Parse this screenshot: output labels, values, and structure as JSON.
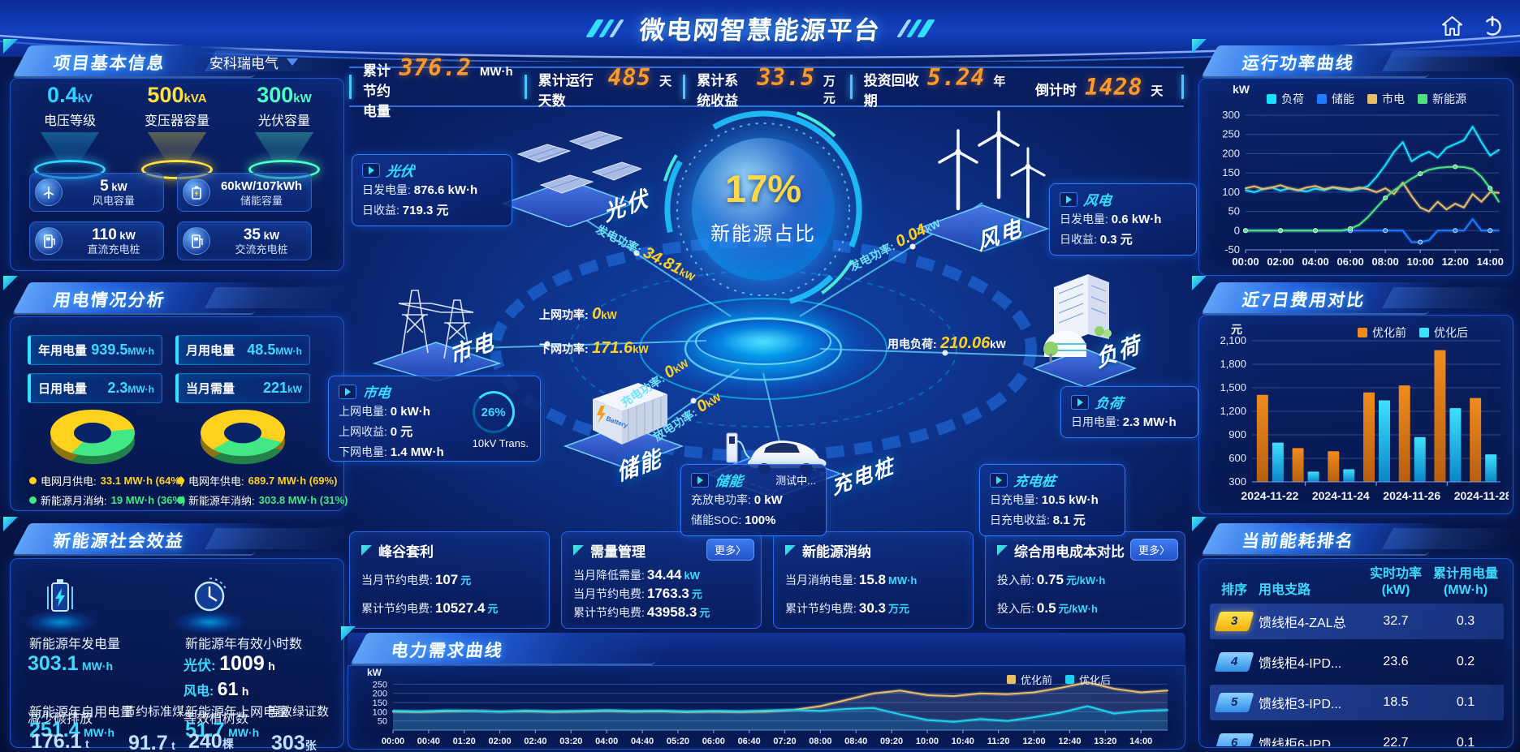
{
  "header": {
    "title": "微电网智慧能源平台"
  },
  "stats_bar": {
    "items": [
      {
        "label": "累计节约电量",
        "value": "376.2",
        "unit": "MW·h"
      },
      {
        "label": "累计运行天数",
        "value": "485",
        "unit": "天"
      },
      {
        "label": "累计系统收益",
        "value": "33.5",
        "unit": "万元"
      },
      {
        "label": "投资回收期",
        "value": "5.24",
        "unit": "年"
      },
      {
        "label": "倒计时",
        "value": "1428",
        "unit": "天"
      }
    ]
  },
  "project": {
    "title": "项目基本信息",
    "dropdown": "安科瑞电气",
    "cones": [
      {
        "value": "0.4",
        "unit": "kV",
        "label": "电压等级",
        "color": "#2fd2ff"
      },
      {
        "value": "500",
        "unit": "kVA",
        "label": "变压器容量",
        "color": "#ffe23f"
      },
      {
        "value": "300",
        "unit": "kW",
        "label": "光伏容量",
        "color": "#4dffc3"
      }
    ],
    "cards": [
      {
        "icon": "wind-turbine-icon",
        "value": "5",
        "unit": "kW",
        "label": "风电容量"
      },
      {
        "icon": "battery-icon",
        "value": "60kW/107kWh",
        "unit": "",
        "label": "储能容量"
      },
      {
        "icon": "dc-charger-icon",
        "value": "110",
        "unit": "kW",
        "label": "直流充电桩"
      },
      {
        "icon": "ac-charger-icon",
        "value": "35",
        "unit": "kW",
        "label": "交流充电桩"
      }
    ]
  },
  "usage": {
    "title": "用电情况分析",
    "stats": [
      {
        "label": "年用电量",
        "value": "939.5",
        "unit": "MW·h"
      },
      {
        "label": "月用电量",
        "value": "48.5",
        "unit": "MW·h"
      },
      {
        "label": "日用电量",
        "value": "2.3",
        "unit": "MW·h"
      },
      {
        "label": "当月需量",
        "value": "221",
        "unit": "kW"
      }
    ],
    "donuts": [
      {
        "from": 210,
        "slices": [
          {
            "label": "电网月供电:",
            "value": "33.1 MW·h",
            "pct": 64,
            "color": "#ffd21f"
          },
          {
            "label": "新能源月消纳:",
            "value": "19 MW·h",
            "pct": 36,
            "color": "#42e884"
          }
        ]
      },
      {
        "from": 225,
        "slices": [
          {
            "label": "电网年供电:",
            "value": "689.7 MW·h",
            "pct": 69,
            "color": "#ffd21f"
          },
          {
            "label": "新能源年消纳:",
            "value": "303.8 MW·h",
            "pct": 31,
            "color": "#42e884"
          }
        ]
      }
    ]
  },
  "benefits": {
    "title": "新能源社会效益",
    "gen": {
      "label": "新能源年发电量",
      "value": "303.1",
      "unit": "MW·h"
    },
    "hours": {
      "label": "新能源年有效小时数",
      "pv_label": "光伏:",
      "pv_value": "1009",
      "pv_unit": "h",
      "wind_label": "风电:",
      "wind_value": "61",
      "wind_unit": "h"
    },
    "self_use": {
      "label": "新能源年自用电量",
      "value": "251.4",
      "unit": "MW·h"
    },
    "co2": {
      "label": "减少碳排放",
      "value": "176.1",
      "unit": "t"
    },
    "coal": {
      "label": "节约标准煤",
      "value": "91.7",
      "unit": "t"
    },
    "to_grid": {
      "label": "新能源年上网电量",
      "value": "51.7",
      "unit": "MW·h"
    },
    "trees": {
      "label": "等效植树数",
      "value": "240",
      "unit": "棵"
    },
    "certs": {
      "label": "等效绿证数",
      "value": "303",
      "unit": "张"
    }
  },
  "diagram": {
    "center_pct": "17%",
    "center_label": "新能源占比",
    "nodes": {
      "pv": "光伏",
      "wind": "风电",
      "grid": "市电",
      "storage": "储能",
      "charger": "充电桩",
      "load": "负荷"
    },
    "callouts": {
      "pv": {
        "title": "光伏",
        "rows": [
          {
            "label": "日发电量:",
            "value": "876.6 kW·h"
          },
          {
            "label": "日收益:",
            "value": "719.3 元"
          }
        ]
      },
      "wind": {
        "title": "风电",
        "rows": [
          {
            "label": "日发电量:",
            "value": "0.6 kW·h"
          },
          {
            "label": "日收益:",
            "value": "0.3 元"
          }
        ]
      },
      "grid": {
        "title": "市电",
        "gauge_pct": "26%",
        "gauge_label": "10kV Trans.",
        "rows": [
          {
            "label": "上网电量:",
            "value": "0 kW·h"
          },
          {
            "label": "上网收益:",
            "value": "0 元"
          },
          {
            "label": "下网电量:",
            "value": "1.4 MW·h"
          }
        ]
      },
      "storage": {
        "title": "储能",
        "note": "测试中...",
        "rows": [
          {
            "label": "充放电功率:",
            "value": "0 kW"
          },
          {
            "label": "储能SOC:",
            "value": "100%"
          }
        ]
      },
      "charger": {
        "title": "充电桩",
        "rows": [
          {
            "label": "日充电量:",
            "value": "10.5 kW·h"
          },
          {
            "label": "日充电收益:",
            "value": "8.1 元"
          }
        ]
      },
      "load": {
        "title": "负荷",
        "rows": [
          {
            "label": "日用电量:",
            "value": "2.3 MW·h"
          }
        ]
      }
    },
    "flows": {
      "pv_gen": {
        "label": "发电功率:",
        "value": "34.81",
        "unit": "kW"
      },
      "wind_gen": {
        "label": "发电功率:",
        "value": "0.04",
        "unit": "kW"
      },
      "feed_in": {
        "label": "上网功率:",
        "value": "0",
        "unit": "kW"
      },
      "draw": {
        "label": "下网功率:",
        "value": "171.6",
        "unit": "kW"
      },
      "load_power": {
        "label": "用电负荷:",
        "value": "210.06",
        "unit": "kW"
      },
      "charge": {
        "label": "充电功率:",
        "value": "0",
        "unit": "kW"
      },
      "discharge": {
        "label": "放电功率:",
        "value": "0",
        "unit": "kW"
      }
    }
  },
  "cards": [
    {
      "title": "峰谷套利",
      "more": null,
      "rows": [
        {
          "label": "当月节约电费:",
          "value": "107",
          "unit": "元"
        },
        {
          "label": "累计节约电费:",
          "value": "10527.4",
          "unit": "元"
        }
      ]
    },
    {
      "title": "需量管理",
      "more": "更多〉",
      "rows": [
        {
          "label": "当月降低需量:",
          "value": "34.44",
          "unit": "kW"
        },
        {
          "label": "当月节约电费:",
          "value": "1763.3",
          "unit": "元"
        },
        {
          "label": "累计节约电费:",
          "value": "43958.3",
          "unit": "元"
        }
      ]
    },
    {
      "title": "新能源消纳",
      "more": null,
      "rows": [
        {
          "label": "当月消纳电量:",
          "value": "15.8",
          "unit": "MW·h"
        },
        {
          "label": "累计节约电费:",
          "value": "30.3",
          "unit": "万元"
        }
      ]
    },
    {
      "title": "综合用电成本对比",
      "more": "更多〉",
      "rows": [
        {
          "label": "投入前:",
          "value": "0.75",
          "unit": "元/kW·h"
        },
        {
          "label": "投入后:",
          "value": "0.5",
          "unit": "元/kW·h"
        }
      ]
    }
  ],
  "ranking": {
    "title": "当前能耗排名",
    "headers": [
      {
        "l1": "排序",
        "l2": ""
      },
      {
        "l1": "用电支路",
        "l2": ""
      },
      {
        "l1": "实时功率",
        "l2": "(kW)"
      },
      {
        "l1": "累计用电量",
        "l2": "(MW·h)"
      }
    ],
    "rows": [
      {
        "rank": "3",
        "badge": "gold",
        "branch": "馈线柜4-ZAL总",
        "power": "32.7",
        "energy": "0.3",
        "hl": true
      },
      {
        "rank": "4",
        "badge": "blue",
        "branch": "馈线柜4-IPD...",
        "power": "23.6",
        "energy": "0.2",
        "hl": false
      },
      {
        "rank": "5",
        "badge": "blue",
        "branch": "馈线柜3-IPD...",
        "power": "18.5",
        "energy": "0.1",
        "hl": true
      },
      {
        "rank": "6",
        "badge": "blue",
        "branch": "馈线柜6-IPD",
        "power": "22.7",
        "energy": "0.1",
        "hl": false
      }
    ]
  },
  "chart_data": [
    {
      "id": "chart-power",
      "type": "line",
      "title": "运行功率曲线",
      "ylabel": "kW",
      "ylim": [
        -50,
        300
      ],
      "yticks": [
        300,
        250,
        200,
        150,
        100,
        50,
        0,
        -50
      ],
      "x_step_hours": 0.5,
      "x_max_hours": 14.5,
      "x_tick_interval_hours": 2,
      "x_ticks": [
        "00:00",
        "02:00",
        "04:00",
        "06:00",
        "08:00",
        "10:00",
        "12:00",
        "14:00"
      ],
      "legend_position": "top",
      "series": [
        {
          "name": "负荷",
          "color": "#17e1ff",
          "values": [
            105,
            100,
            108,
            112,
            104,
            110,
            105,
            102,
            109,
            105,
            112,
            107,
            104,
            108,
            115,
            140,
            170,
            205,
            230,
            180,
            195,
            205,
            190,
            215,
            225,
            235,
            270,
            230,
            195,
            210
          ]
        },
        {
          "name": "储能",
          "color": "#1f7bff",
          "markers": true,
          "values": [
            0,
            0,
            0,
            0,
            0,
            0,
            0,
            0,
            0,
            0,
            0,
            0,
            0,
            0,
            0,
            0,
            0,
            0,
            0,
            -30,
            -30,
            -25,
            0,
            0,
            0,
            0,
            30,
            0,
            0,
            0
          ]
        },
        {
          "name": "市电",
          "color": "#e8c06a",
          "values": [
            110,
            115,
            108,
            112,
            118,
            110,
            105,
            112,
            116,
            108,
            113,
            110,
            107,
            112,
            108,
            100,
            110,
            95,
            125,
            90,
            60,
            50,
            75,
            55,
            70,
            60,
            95,
            75,
            100,
            98
          ]
        },
        {
          "name": "新能源",
          "color": "#52e07c",
          "markers": true,
          "values": [
            0,
            0,
            0,
            0,
            0,
            0,
            0,
            0,
            0,
            0,
            0,
            0,
            5,
            15,
            35,
            60,
            85,
            105,
            120,
            135,
            148,
            158,
            163,
            165,
            166,
            165,
            160,
            140,
            110,
            75
          ]
        }
      ]
    },
    {
      "id": "chart-cost",
      "type": "bar",
      "title": "近7日费用对比",
      "ylabel": "元",
      "ylim": [
        300,
        2100
      ],
      "yticks": [
        2100,
        1800,
        1500,
        1200,
        900,
        600,
        300
      ],
      "categories": [
        "2024-11-22",
        "2024-11-23",
        "2024-11-24",
        "2024-11-25",
        "2024-11-26",
        "2024-11-27",
        "2024-11-28"
      ],
      "labeled_groups": [
        0,
        2,
        4,
        6
      ],
      "legend_position": "top-right",
      "series": [
        {
          "name": "优化前",
          "color": "#f08c1e",
          "color2": "#b85f10",
          "values": [
            1410,
            730,
            690,
            1440,
            1530,
            1980,
            1370
          ]
        },
        {
          "name": "优化后",
          "color": "#3fe0ff",
          "color2": "#0a86c8",
          "values": [
            800,
            430,
            460,
            1340,
            870,
            1240,
            650
          ]
        }
      ]
    },
    {
      "id": "chart-demand",
      "type": "line",
      "title": "电力需求曲线",
      "ylabel": "kW",
      "ylim": [
        0,
        300
      ],
      "yticks": [
        250,
        200,
        150,
        100,
        50
      ],
      "x_step_hours": 0.5,
      "x_max_hours": 14.5,
      "x_tick_interval_hours": 0.6667,
      "x_ticks": [
        "00:00",
        "00:40",
        "01:20",
        "02:00",
        "02:40",
        "03:20",
        "04:00",
        "04:40",
        "05:20",
        "06:00",
        "06:40",
        "07:20",
        "08:00",
        "08:40",
        "09:20",
        "10:00",
        "10:40",
        "11:20",
        "12:00",
        "12:40",
        "13:20",
        "14:00"
      ],
      "legend_position": "top-right",
      "series": [
        {
          "name": "优化前",
          "color": "#e8c06a",
          "fill": "rgba(180,195,225,0.16)",
          "values": [
            100,
            98,
            102,
            105,
            100,
            103,
            99,
            101,
            104,
            100,
            102,
            98,
            100,
            98,
            100,
            110,
            130,
            165,
            200,
            215,
            190,
            185,
            200,
            195,
            205,
            230,
            260,
            225,
            205,
            215
          ]
        },
        {
          "name": "优化后",
          "color": "#1fd3f0",
          "fill": "rgba(0,190,255,0.16)",
          "values": [
            105,
            102,
            107,
            104,
            100,
            106,
            103,
            105,
            108,
            104,
            106,
            102,
            105,
            103,
            107,
            110,
            105,
            115,
            120,
            85,
            55,
            45,
            60,
            50,
            70,
            95,
            130,
            90,
            105,
            110
          ]
        }
      ]
    }
  ]
}
